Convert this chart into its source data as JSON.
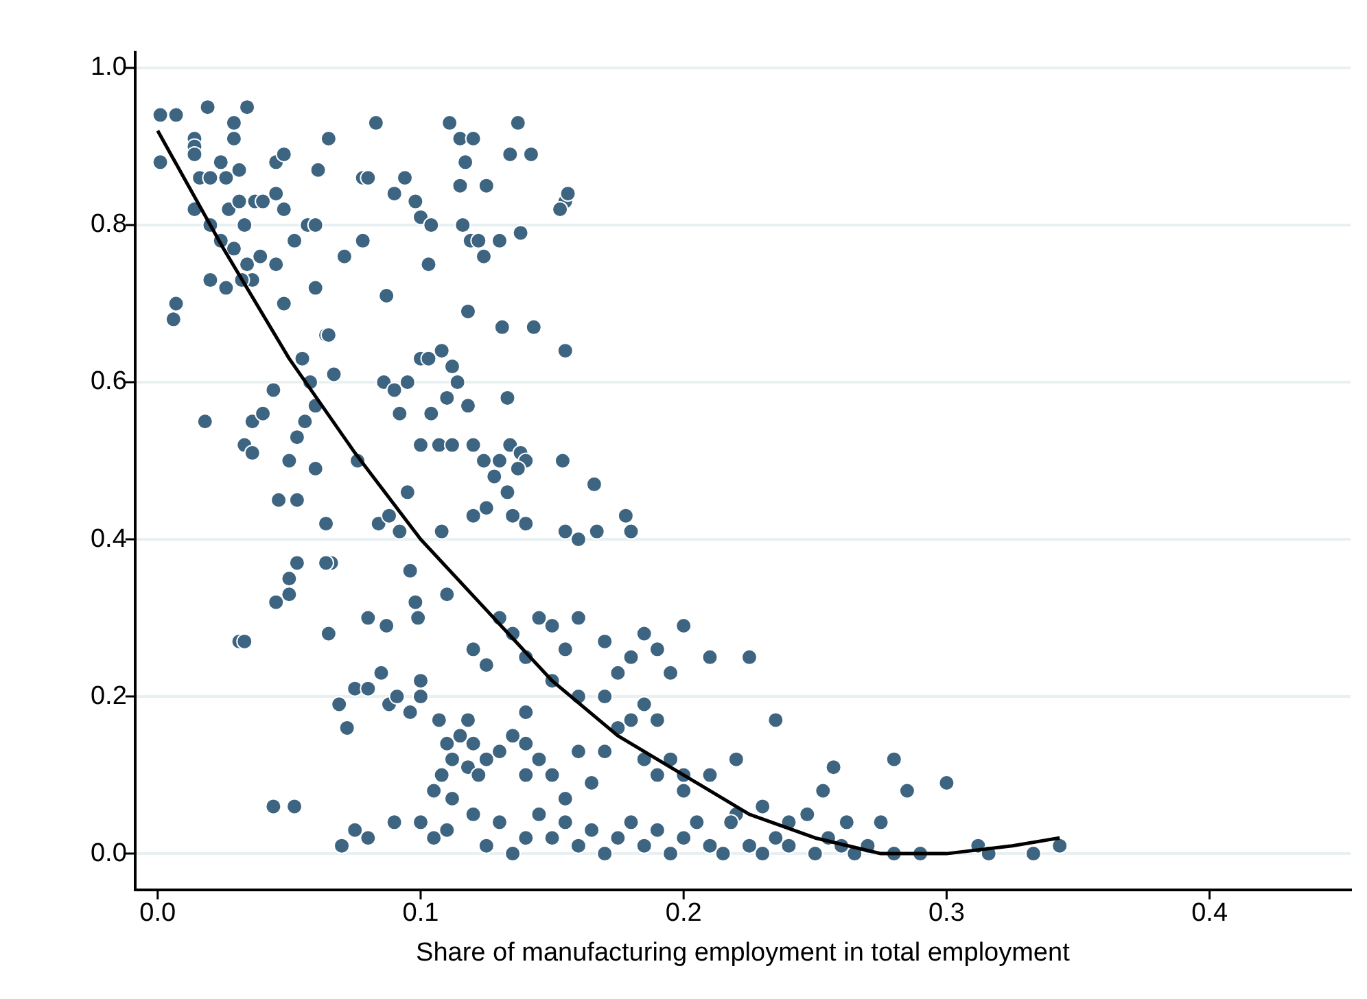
{
  "chart_data": {
    "type": "scatter",
    "xlabel": "Share of manufacturing employment in total employment",
    "xlim": [
      -0.0086,
      0.4536
    ],
    "ylim": [
      -0.046,
      1.02
    ],
    "xticks": [
      {
        "value": 0,
        "label": "0.0"
      },
      {
        "value": 0.1,
        "label": "0.1"
      },
      {
        "value": 0.2,
        "label": "0.2"
      },
      {
        "value": 0.3,
        "label": "0.3"
      },
      {
        "value": 0.4,
        "label": "0.4"
      }
    ],
    "yticks": [
      {
        "value": 0,
        "label": "0.0"
      },
      {
        "value": 0.2,
        "label": "0.2"
      },
      {
        "value": 0.4,
        "label": "0.4"
      },
      {
        "value": 0.6,
        "label": "0.6"
      },
      {
        "value": 0.8,
        "label": "0.8"
      },
      {
        "value": 1,
        "label": "1.0"
      }
    ],
    "grid": "y",
    "legend": false,
    "marker": "circle",
    "series": [
      {
        "color": "#3d6480",
        "x": [
          0.001,
          0.007,
          0.001,
          0.014,
          0.014,
          0.014,
          0.019,
          0.024,
          0.026,
          0.029,
          0.029,
          0.034,
          0.031,
          0.016,
          0.02,
          0.014,
          0.02,
          0.027,
          0.031,
          0.033,
          0.037,
          0.04,
          0.045,
          0.048,
          0.045,
          0.048,
          0.052,
          0.024,
          0.029,
          0.034,
          0.036,
          0.032,
          0.039,
          0.045,
          0.048,
          0.02,
          0.026,
          0.007,
          0.006,
          0.018,
          0.033,
          0.036,
          0.036,
          0.04,
          0.044,
          0.05,
          0.053,
          0.056,
          0.046,
          0.06,
          0.058,
          0.055,
          0.06,
          0.064,
          0.053,
          0.066,
          0.064,
          0.06,
          0.064,
          0.061,
          0.065,
          0.057,
          0.06,
          0.045,
          0.05,
          0.05,
          0.053,
          0.031,
          0.033,
          0.065,
          0.044,
          0.052,
          0.083,
          0.078,
          0.08,
          0.071,
          0.078,
          0.09,
          0.094,
          0.098,
          0.1,
          0.104,
          0.111,
          0.115,
          0.12,
          0.137,
          0.134,
          0.142,
          0.117,
          0.115,
          0.125,
          0.116,
          0.119,
          0.122,
          0.124,
          0.13,
          0.138,
          0.155,
          0.156,
          0.153,
          0.103,
          0.087,
          0.118,
          0.131,
          0.143,
          0.155,
          0.067,
          0.065,
          0.086,
          0.09,
          0.095,
          0.1,
          0.103,
          0.108,
          0.112,
          0.114,
          0.092,
          0.104,
          0.11,
          0.118,
          0.133,
          0.1,
          0.107,
          0.112,
          0.12,
          0.124,
          0.13,
          0.134,
          0.138,
          0.14,
          0.128,
          0.133,
          0.137,
          0.076,
          0.084,
          0.092,
          0.088,
          0.095,
          0.108,
          0.12,
          0.125,
          0.135,
          0.14,
          0.154,
          0.155,
          0.16,
          0.166,
          0.167,
          0.178,
          0.18,
          0.096,
          0.098,
          0.11,
          0.087,
          0.099,
          0.08,
          0.069,
          0.075,
          0.08,
          0.072,
          0.085,
          0.088,
          0.091,
          0.096,
          0.1,
          0.1,
          0.107,
          0.11,
          0.112,
          0.115,
          0.118,
          0.12,
          0.125,
          0.105,
          0.108,
          0.112,
          0.118,
          0.122,
          0.13,
          0.135,
          0.14,
          0.14,
          0.145,
          0.15,
          0.155,
          0.16,
          0.165,
          0.17,
          0.175,
          0.18,
          0.185,
          0.19,
          0.195,
          0.2,
          0.12,
          0.125,
          0.13,
          0.135,
          0.14,
          0.145,
          0.15,
          0.155,
          0.16,
          0.17,
          0.175,
          0.18,
          0.185,
          0.19,
          0.195,
          0.2,
          0.21,
          0.225,
          0.17,
          0.16,
          0.15,
          0.14,
          0.185,
          0.19,
          0.075,
          0.08,
          0.07,
          0.09,
          0.1,
          0.105,
          0.11,
          0.12,
          0.125,
          0.13,
          0.135,
          0.14,
          0.145,
          0.15,
          0.155,
          0.16,
          0.165,
          0.17,
          0.175,
          0.18,
          0.185,
          0.19,
          0.195,
          0.2,
          0.205,
          0.21,
          0.215,
          0.22,
          0.225,
          0.23,
          0.235,
          0.24,
          0.25,
          0.255,
          0.26,
          0.265,
          0.27,
          0.28,
          0.29,
          0.2,
          0.21,
          0.22,
          0.218,
          0.235,
          0.257,
          0.253,
          0.28,
          0.285,
          0.3,
          0.275,
          0.262,
          0.24,
          0.247,
          0.312,
          0.316,
          0.333,
          0.343,
          0.23
        ],
        "values": [
          0.94,
          0.94,
          0.88,
          0.91,
          0.9,
          0.89,
          0.95,
          0.88,
          0.86,
          0.93,
          0.91,
          0.95,
          0.87,
          0.86,
          0.86,
          0.82,
          0.8,
          0.82,
          0.83,
          0.8,
          0.83,
          0.83,
          0.88,
          0.89,
          0.84,
          0.82,
          0.78,
          0.78,
          0.77,
          0.75,
          0.73,
          0.73,
          0.76,
          0.75,
          0.7,
          0.73,
          0.72,
          0.7,
          0.68,
          0.55,
          0.52,
          0.51,
          0.55,
          0.56,
          0.59,
          0.5,
          0.53,
          0.55,
          0.45,
          0.49,
          0.6,
          0.63,
          0.57,
          0.42,
          0.45,
          0.37,
          0.37,
          0.72,
          0.66,
          0.87,
          0.91,
          0.8,
          0.8,
          0.32,
          0.33,
          0.35,
          0.37,
          0.27,
          0.27,
          0.28,
          0.06,
          0.06,
          0.93,
          0.86,
          0.86,
          0.76,
          0.78,
          0.84,
          0.86,
          0.83,
          0.81,
          0.8,
          0.93,
          0.91,
          0.91,
          0.93,
          0.89,
          0.89,
          0.88,
          0.85,
          0.85,
          0.8,
          0.78,
          0.78,
          0.76,
          0.78,
          0.79,
          0.83,
          0.84,
          0.82,
          0.75,
          0.71,
          0.69,
          0.67,
          0.67,
          0.64,
          0.61,
          0.66,
          0.6,
          0.59,
          0.6,
          0.63,
          0.63,
          0.64,
          0.62,
          0.6,
          0.56,
          0.56,
          0.58,
          0.57,
          0.58,
          0.52,
          0.52,
          0.52,
          0.52,
          0.5,
          0.5,
          0.52,
          0.51,
          0.5,
          0.48,
          0.46,
          0.49,
          0.5,
          0.42,
          0.41,
          0.43,
          0.46,
          0.41,
          0.43,
          0.44,
          0.43,
          0.42,
          0.5,
          0.41,
          0.4,
          0.47,
          0.41,
          0.43,
          0.41,
          0.36,
          0.32,
          0.33,
          0.29,
          0.3,
          0.3,
          0.19,
          0.21,
          0.21,
          0.16,
          0.23,
          0.19,
          0.2,
          0.18,
          0.2,
          0.22,
          0.17,
          0.14,
          0.12,
          0.15,
          0.17,
          0.14,
          0.12,
          0.08,
          0.1,
          0.07,
          0.11,
          0.1,
          0.13,
          0.15,
          0.1,
          0.14,
          0.12,
          0.1,
          0.07,
          0.13,
          0.09,
          0.13,
          0.16,
          0.17,
          0.12,
          0.1,
          0.12,
          0.1,
          0.26,
          0.24,
          0.3,
          0.28,
          0.25,
          0.3,
          0.29,
          0.26,
          0.3,
          0.27,
          0.23,
          0.25,
          0.28,
          0.26,
          0.23,
          0.29,
          0.25,
          0.25,
          0.2,
          0.2,
          0.22,
          0.18,
          0.19,
          0.17,
          0.03,
          0.02,
          0.01,
          0.04,
          0.04,
          0.02,
          0.03,
          0.05,
          0.01,
          0.04,
          0.0,
          0.02,
          0.05,
          0.02,
          0.04,
          0.01,
          0.03,
          0.0,
          0.02,
          0.04,
          0.01,
          0.03,
          0.0,
          0.02,
          0.04,
          0.01,
          0.0,
          0.05,
          0.01,
          0.0,
          0.02,
          0.01,
          0.0,
          0.02,
          0.01,
          0.0,
          0.01,
          0.0,
          0.0,
          0.08,
          0.1,
          0.12,
          0.04,
          0.17,
          0.11,
          0.08,
          0.12,
          0.08,
          0.09,
          0.04,
          0.04,
          0.04,
          0.05,
          0.01,
          0.0,
          0.0,
          0.01,
          0.06
        ]
      },
      {
        "type": "line",
        "color": "#000000",
        "marker": "none",
        "line_style": "solid",
        "x": [
          0,
          0.025,
          0.05,
          0.075,
          0.1,
          0.125,
          0.15,
          0.175,
          0.2,
          0.225,
          0.25,
          0.275,
          0.3,
          0.325,
          0.343
        ],
        "values": [
          0.92,
          0.77,
          0.63,
          0.51,
          0.4,
          0.31,
          0.22,
          0.15,
          0.1,
          0.05,
          0.02,
          0.0,
          0.0,
          0.01,
          0.02
        ]
      }
    ]
  }
}
